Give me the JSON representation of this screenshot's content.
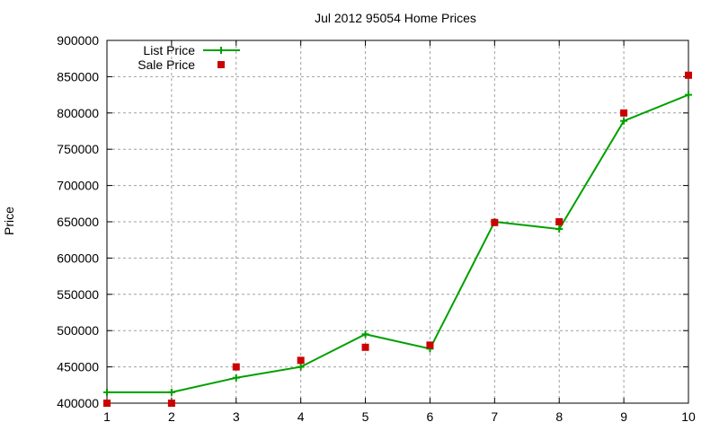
{
  "chart_data": {
    "type": "line",
    "title": "Jul 2012 95054 Home Prices",
    "xlabel": "",
    "ylabel": "Price",
    "x": [
      1,
      2,
      3,
      4,
      5,
      6,
      7,
      8,
      9,
      10
    ],
    "xlim": [
      1,
      10
    ],
    "ylim": [
      400000,
      900000
    ],
    "xticks": [
      "1",
      "2",
      "3",
      "4",
      "5",
      "6",
      "7",
      "8",
      "9",
      "10"
    ],
    "yticks": [
      "400000",
      "450000",
      "500000",
      "550000",
      "600000",
      "650000",
      "700000",
      "750000",
      "800000",
      "850000",
      "900000"
    ],
    "grid": true,
    "legend_position": "top-left",
    "series": [
      {
        "name": "List Price",
        "style": "line+cross",
        "color": "#00a000",
        "values": [
          415000,
          415000,
          435000,
          450000,
          495000,
          475000,
          650000,
          640000,
          789000,
          825000
        ]
      },
      {
        "name": "Sale Price",
        "style": "square-points",
        "color": "#cc0000",
        "values": [
          400000,
          400000,
          450000,
          459000,
          477000,
          480000,
          649000,
          650000,
          800000,
          852000
        ]
      }
    ]
  }
}
